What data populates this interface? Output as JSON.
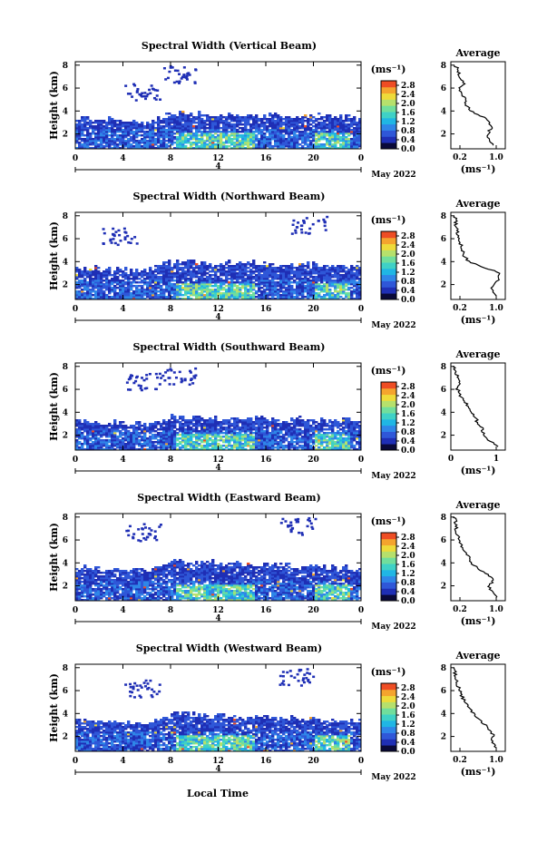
{
  "figure": {
    "x_label": "Local Time",
    "y_label": "Height (km)",
    "date_label": "May 2022",
    "day_marker": "4",
    "colorbar_unit": "(ms⁻¹)",
    "profile_xlabel": "(ms⁻¹)",
    "profile_title": "Average"
  },
  "colorscale": [
    "#0a0a3a",
    "#1f2fb5",
    "#2f57d8",
    "#2f86e8",
    "#20b6e4",
    "#3fd1c6",
    "#71de9c",
    "#b6e06c",
    "#eedb3a",
    "#f4a42e",
    "#ee4d24"
  ],
  "chart_data": [
    {
      "type": "heatmap",
      "title": "Spectral Width (Vertical Beam)",
      "xlabel": "Local Time",
      "ylabel": "Height (km)",
      "xlim": [
        0,
        24
      ],
      "ylim": [
        0.7,
        8.3
      ],
      "x_ticks": [
        "0",
        "4",
        "8",
        "12",
        "16",
        "20",
        "0"
      ],
      "y_ticks": [
        "2",
        "4",
        "6",
        "8"
      ],
      "colorbar": {
        "ticks": [
          "0.0",
          "0.4",
          "0.8",
          "1.2",
          "1.6",
          "2.0",
          "2.4",
          "2.8"
        ],
        "range": [
          0,
          3
        ],
        "unit": "(ms⁻¹)"
      },
      "data_summary": {
        "main_layer_top_km": [
          3.5,
          3.0,
          3.8,
          3.6,
          3.5
        ],
        "main_layer_times": [
          0,
          6,
          8,
          18,
          24
        ],
        "upper_patches_km": [
          6.5,
          8.0
        ],
        "upper_patch_times": [
          5,
          8
        ]
      },
      "average_profile": {
        "x_ticks": [
          "0.2",
          "1.0"
        ],
        "xlim": [
          0,
          1.2
        ],
        "ylim": [
          0.7,
          8.3
        ],
        "y_ticks": [
          "2",
          "4",
          "6",
          "8"
        ],
        "height": [
          1.0,
          1.5,
          2.0,
          2.5,
          3.0,
          3.5,
          4.0,
          4.5,
          5.0,
          5.5,
          6.0,
          6.5,
          7.0,
          7.5,
          8.0
        ],
        "value": [
          0.95,
          0.85,
          0.8,
          0.9,
          0.85,
          0.7,
          0.45,
          0.35,
          0.3,
          0.25,
          0.2,
          0.3,
          0.2,
          0.15,
          0.1
        ]
      }
    },
    {
      "type": "heatmap",
      "title": "Spectral Width (Northward Beam)",
      "xlabel": "Local Time",
      "ylabel": "Height (km)",
      "xlim": [
        0,
        24
      ],
      "ylim": [
        0.7,
        8.3
      ],
      "x_ticks": [
        "0",
        "4",
        "8",
        "12",
        "16",
        "20",
        "0"
      ],
      "y_ticks": [
        "2",
        "4",
        "6",
        "8"
      ],
      "colorbar": {
        "ticks": [
          "0.0",
          "0.4",
          "0.8",
          "1.2",
          "1.6",
          "2.0",
          "2.4",
          "2.8"
        ],
        "range": [
          0,
          3
        ],
        "unit": "(ms⁻¹)"
      },
      "data_summary": {
        "main_layer_top_km": [
          3.5,
          3.2,
          4.0,
          3.8,
          3.5
        ],
        "main_layer_times": [
          0,
          6,
          8,
          18,
          24
        ],
        "upper_patches_km": [
          7.0,
          8.0
        ],
        "upper_patch_times": [
          3,
          19
        ]
      },
      "average_profile": {
        "x_ticks": [
          "0.2",
          "1.0"
        ],
        "xlim": [
          0,
          1.2
        ],
        "ylim": [
          0.7,
          8.3
        ],
        "y_ticks": [
          "2",
          "4",
          "6",
          "8"
        ],
        "height": [
          1.0,
          1.5,
          2.0,
          2.5,
          3.0,
          3.5,
          4.0,
          4.5,
          5.0,
          5.5,
          6.0,
          6.5,
          7.0,
          7.5,
          8.0
        ],
        "value": [
          1.0,
          0.9,
          0.95,
          1.05,
          1.1,
          0.7,
          0.4,
          0.3,
          0.25,
          0.22,
          0.2,
          0.15,
          0.12,
          0.1,
          0.08
        ]
      }
    },
    {
      "type": "heatmap",
      "title": "Spectral Width (Southward Beam)",
      "xlabel": "Local Time",
      "ylabel": "Height (km)",
      "xlim": [
        0,
        24
      ],
      "ylim": [
        0.7,
        8.3
      ],
      "x_ticks": [
        "0",
        "4",
        "8",
        "12",
        "16",
        "20",
        "0"
      ],
      "y_ticks": [
        "2",
        "4",
        "6",
        "8"
      ],
      "colorbar": {
        "ticks": [
          "0.0",
          "0.4",
          "0.8",
          "1.2",
          "1.6",
          "2.0",
          "2.4",
          "2.8"
        ],
        "range": [
          0,
          3
        ],
        "unit": "(ms⁻¹)"
      },
      "data_summary": {
        "main_layer_top_km": [
          3.2,
          3.0,
          3.6,
          3.4,
          3.3
        ],
        "main_layer_times": [
          0,
          6,
          8,
          18,
          24
        ],
        "upper_patches_km": [
          7.5,
          8.0
        ],
        "upper_patch_times": [
          5,
          8
        ]
      },
      "average_profile": {
        "x_ticks": [
          "0",
          "1"
        ],
        "xlim": [
          0,
          1.2
        ],
        "ylim": [
          0.7,
          8.3
        ],
        "y_ticks": [
          "2",
          "4",
          "6",
          "8"
        ],
        "height": [
          1.0,
          1.5,
          2.0,
          2.5,
          3.0,
          3.5,
          4.0,
          4.5,
          5.0,
          5.5,
          6.0,
          6.5,
          7.0,
          7.5,
          8.0
        ],
        "value": [
          1.05,
          0.85,
          0.75,
          0.7,
          0.6,
          0.55,
          0.45,
          0.4,
          0.3,
          0.2,
          0.15,
          0.2,
          0.15,
          0.1,
          0.05
        ]
      }
    },
    {
      "type": "heatmap",
      "title": "Spectral Width (Eastward Beam)",
      "xlabel": "Local Time",
      "ylabel": "Height (km)",
      "xlim": [
        0,
        24
      ],
      "ylim": [
        0.7,
        8.3
      ],
      "x_ticks": [
        "0",
        "4",
        "8",
        "12",
        "16",
        "20",
        "0"
      ],
      "y_ticks": [
        "2",
        "4",
        "6",
        "8"
      ],
      "colorbar": {
        "ticks": [
          "0.0",
          "0.4",
          "0.8",
          "1.2",
          "1.6",
          "2.0",
          "2.4",
          "2.8"
        ],
        "range": [
          0,
          3
        ],
        "unit": "(ms⁻¹)"
      },
      "data_summary": {
        "main_layer_top_km": [
          3.6,
          3.3,
          4.2,
          3.8,
          3.5
        ],
        "main_layer_times": [
          0,
          6,
          8,
          18,
          24
        ],
        "upper_patches_km": [
          7.5,
          8.0
        ],
        "upper_patch_times": [
          5,
          18
        ]
      },
      "average_profile": {
        "x_ticks": [
          "0.2",
          "1.0"
        ],
        "xlim": [
          0,
          1.2
        ],
        "ylim": [
          0.7,
          8.3
        ],
        "y_ticks": [
          "2",
          "4",
          "6",
          "8"
        ],
        "height": [
          1.0,
          1.5,
          2.0,
          2.5,
          3.0,
          3.5,
          4.0,
          4.5,
          5.0,
          5.5,
          6.0,
          6.5,
          7.0,
          7.5,
          8.0
        ],
        "value": [
          1.0,
          0.9,
          0.85,
          0.95,
          0.8,
          0.6,
          0.45,
          0.4,
          0.3,
          0.25,
          0.2,
          0.15,
          0.12,
          0.1,
          0.08
        ]
      }
    },
    {
      "type": "heatmap",
      "title": "Spectral Width (Westward Beam)",
      "xlabel": "Local Time",
      "ylabel": "Height (km)",
      "xlim": [
        0,
        24
      ],
      "ylim": [
        0.7,
        8.3
      ],
      "x_ticks": [
        "0",
        "4",
        "8",
        "12",
        "16",
        "20",
        "0"
      ],
      "y_ticks": [
        "2",
        "4",
        "6",
        "8"
      ],
      "colorbar": {
        "ticks": [
          "0.0",
          "0.4",
          "0.8",
          "1.2",
          "1.6",
          "2.0",
          "2.4",
          "2.8"
        ],
        "range": [
          0,
          3
        ],
        "unit": "(ms⁻¹)"
      },
      "data_summary": {
        "main_layer_top_km": [
          3.5,
          3.2,
          4.0,
          3.6,
          3.4
        ],
        "main_layer_times": [
          0,
          6,
          8,
          18,
          24
        ],
        "upper_patches_km": [
          7.0,
          8.0
        ],
        "upper_patch_times": [
          5,
          18
        ]
      },
      "average_profile": {
        "x_ticks": [
          "0.2",
          "1.0"
        ],
        "xlim": [
          0,
          1.2
        ],
        "ylim": [
          0.7,
          8.3
        ],
        "y_ticks": [
          "2",
          "4",
          "6",
          "8"
        ],
        "height": [
          1.0,
          1.5,
          2.0,
          2.5,
          3.0,
          3.5,
          4.0,
          4.5,
          5.0,
          5.5,
          6.0,
          6.5,
          7.0,
          7.5,
          8.0
        ],
        "value": [
          1.0,
          0.9,
          0.95,
          0.85,
          0.75,
          0.6,
          0.5,
          0.4,
          0.3,
          0.25,
          0.2,
          0.15,
          0.12,
          0.1,
          0.05
        ]
      }
    }
  ]
}
